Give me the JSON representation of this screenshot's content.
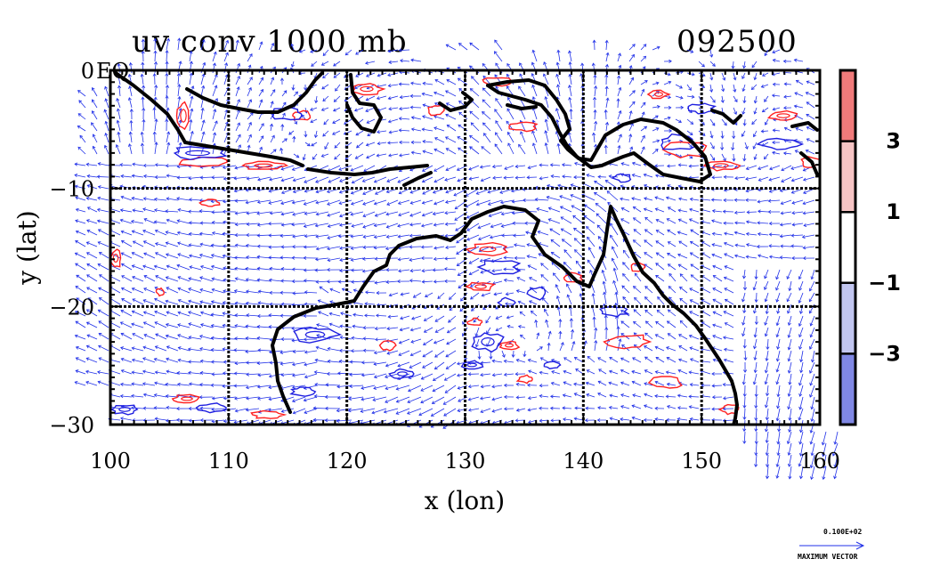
{
  "chart_data": {
    "type": "vector-field-contour",
    "title": "uv conv 1000 mb",
    "date_label": "092500",
    "xlabel": "x (lon)",
    "ylabel": "y (lat)",
    "xlim": [
      100,
      160
    ],
    "ylim": [
      -30,
      0
    ],
    "x_ticks": [
      100,
      110,
      120,
      130,
      140,
      150,
      160
    ],
    "y_ticks": [
      0,
      -10,
      -20,
      -30
    ],
    "x_tick_labels": [
      "100",
      "110",
      "120",
      "130",
      "140",
      "150",
      "160"
    ],
    "y_tick_labels": [
      "0",
      "−10",
      "−20",
      "−30"
    ],
    "corner_label": "EQ",
    "grid": true,
    "colorbar": {
      "tick_labels": [
        "3",
        "1",
        "−1",
        "−3"
      ],
      "levels": [
        3,
        1,
        -1,
        -3
      ],
      "colors": [
        "#f07a7a",
        "#f6c4c4",
        "#ffffff",
        "#c2c6f0",
        "#8088e4"
      ]
    },
    "contour_colors": {
      "positive": "#ff2020",
      "negative": "#2020e0"
    },
    "vector_color": "#2030e8",
    "reference_vector": {
      "value": "0.100E+02",
      "label": "MAXIMUM VECTOR"
    }
  }
}
